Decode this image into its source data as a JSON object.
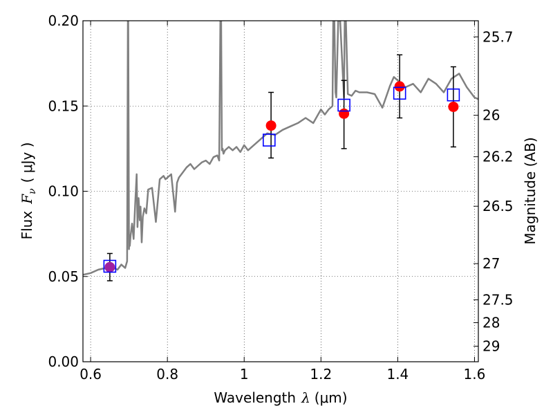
{
  "chart_data": {
    "type": "scatter",
    "xlabel_prefix": "Wavelength",
    "xlabel_symbol": "λ",
    "xlabel_unit": "(μm)",
    "ylabel_prefix": "Flux",
    "ylabel_symbol": "F",
    "ylabel_subscript": "ν",
    "ylabel_unit": "( μJy )",
    "y2label": "Magnitude (AB)",
    "xlim": [
      0.58,
      1.61
    ],
    "ylim": [
      0.0,
      0.2
    ],
    "grid": true,
    "x_ticks": [
      0.6,
      0.8,
      1.0,
      1.2,
      1.4,
      1.6
    ],
    "x_tick_labels": [
      "0.6",
      "0.8",
      "1",
      "1.2",
      "1.4",
      "1.6"
    ],
    "y_ticks": [
      0.0,
      0.05,
      0.1,
      0.15,
      0.2
    ],
    "y_tick_labels": [
      "0.00",
      "0.05",
      "0.10",
      "0.15",
      "0.20"
    ],
    "y2_tick_labels": [
      "25.7",
      "26",
      "26.2",
      "26.5",
      "27",
      "27.5",
      "28",
      "29"
    ],
    "y2_tick_values": [
      25.7,
      26,
      26.2,
      26.5,
      27,
      27.5,
      28,
      29
    ],
    "series": [
      {
        "style": "line",
        "color": "#808080",
        "x": [
          0.58,
          0.6,
          0.62,
          0.64,
          0.65,
          0.66,
          0.67,
          0.68,
          0.69,
          0.695,
          0.697,
          0.698,
          0.699,
          0.7,
          0.701,
          0.702,
          0.704,
          0.708,
          0.712,
          0.716,
          0.72,
          0.722,
          0.725,
          0.728,
          0.73,
          0.733,
          0.736,
          0.74,
          0.745,
          0.75,
          0.76,
          0.77,
          0.78,
          0.785,
          0.79,
          0.795,
          0.8,
          0.81,
          0.82,
          0.825,
          0.83,
          0.84,
          0.85,
          0.86,
          0.87,
          0.88,
          0.89,
          0.9,
          0.91,
          0.92,
          0.93,
          0.935,
          0.938,
          0.94,
          0.942,
          0.944,
          0.946,
          0.95,
          0.96,
          0.97,
          0.98,
          0.99,
          1.0,
          1.01,
          1.02,
          1.04,
          1.06,
          1.08,
          1.1,
          1.12,
          1.14,
          1.16,
          1.18,
          1.2,
          1.21,
          1.22,
          1.23,
          1.232,
          1.235,
          1.238,
          1.24,
          1.245,
          1.25,
          1.26,
          1.262,
          1.265,
          1.27,
          1.28,
          1.29,
          1.3,
          1.32,
          1.34,
          1.36,
          1.38,
          1.39,
          1.4,
          1.42,
          1.44,
          1.46,
          1.48,
          1.5,
          1.52,
          1.54,
          1.56,
          1.58,
          1.6,
          1.61
        ],
        "y": [
          0.051,
          0.052,
          0.054,
          0.055,
          0.056,
          0.055,
          0.054,
          0.057,
          0.055,
          0.059,
          0.2,
          0.2,
          0.13,
          0.066,
          0.072,
          0.068,
          0.074,
          0.081,
          0.072,
          0.092,
          0.11,
          0.079,
          0.096,
          0.083,
          0.091,
          0.07,
          0.085,
          0.09,
          0.087,
          0.101,
          0.102,
          0.082,
          0.107,
          0.108,
          0.109,
          0.107,
          0.108,
          0.11,
          0.088,
          0.105,
          0.108,
          0.111,
          0.114,
          0.116,
          0.113,
          0.115,
          0.117,
          0.118,
          0.116,
          0.12,
          0.121,
          0.118,
          0.2,
          0.2,
          0.124,
          0.125,
          0.122,
          0.124,
          0.126,
          0.124,
          0.126,
          0.123,
          0.127,
          0.124,
          0.126,
          0.13,
          0.134,
          0.133,
          0.136,
          0.138,
          0.14,
          0.143,
          0.14,
          0.148,
          0.145,
          0.148,
          0.15,
          0.2,
          0.2,
          0.158,
          0.155,
          0.2,
          0.2,
          0.155,
          0.2,
          0.2,
          0.157,
          0.156,
          0.159,
          0.158,
          0.158,
          0.157,
          0.149,
          0.162,
          0.167,
          0.165,
          0.161,
          0.163,
          0.158,
          0.166,
          0.163,
          0.158,
          0.166,
          0.169,
          0.161,
          0.155,
          0.154
        ]
      },
      {
        "style": "errorbar",
        "color": "#000000",
        "x": [
          0.65,
          1.07,
          1.26,
          1.405,
          1.545
        ],
        "y": [
          0.0555,
          0.1385,
          0.1455,
          0.1615,
          0.1495
        ],
        "yerr_low": [
          0.008,
          0.019,
          0.0205,
          0.0185,
          0.0235
        ],
        "yerr_high": [
          0.008,
          0.0195,
          0.0195,
          0.0185,
          0.0235
        ]
      },
      {
        "style": "circle",
        "color": "#ff0000",
        "x": [
          1.07,
          1.26,
          1.405,
          1.545
        ],
        "y": [
          0.1385,
          0.1455,
          0.1615,
          0.1495
        ]
      },
      {
        "style": "circle",
        "color": "#a020a0",
        "x": [
          0.65
        ],
        "y": [
          0.0555
        ]
      },
      {
        "style": "square",
        "color": "#0000ff",
        "x": [
          0.65,
          1.065,
          1.26,
          1.405,
          1.545
        ],
        "y": [
          0.056,
          0.13,
          0.1505,
          0.1575,
          0.1565
        ]
      }
    ]
  }
}
